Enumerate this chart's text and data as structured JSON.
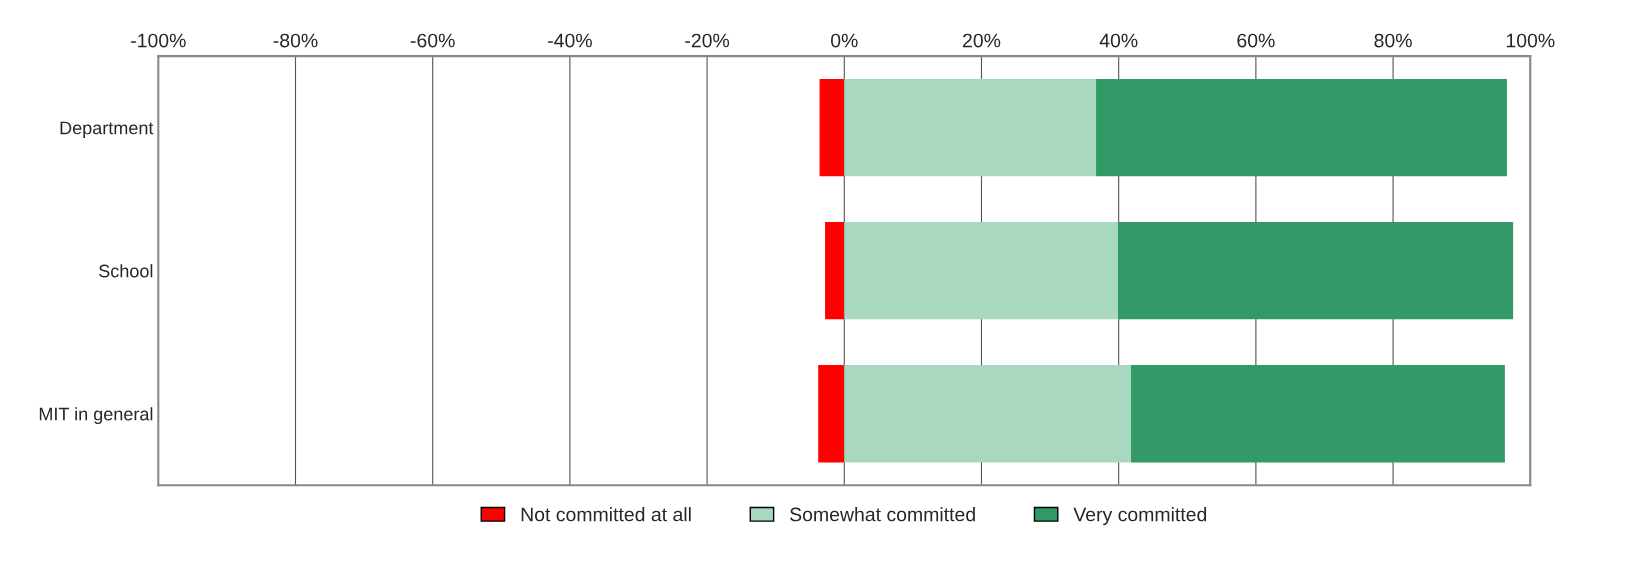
{
  "chart_data": {
    "type": "bar",
    "orientation": "horizontal",
    "stacked": true,
    "categories": [
      "Department",
      "School",
      "MIT in general"
    ],
    "series": [
      {
        "name": "Not committed at all",
        "color": "#ff0000",
        "values": [
          -3.6,
          -2.8,
          -3.8
        ]
      },
      {
        "name": "Somewhat committed",
        "color": "#a9d8c0",
        "values": [
          36.7,
          39.9,
          41.8
        ]
      },
      {
        "name": "Very committed",
        "color": "#339966",
        "values": [
          59.9,
          57.6,
          54.5
        ]
      }
    ],
    "xlim": [
      -100,
      100
    ],
    "xticks": [
      {
        "value": -100,
        "label": "-100%"
      },
      {
        "value": -80,
        "label": "-80%"
      },
      {
        "value": -60,
        "label": "-60%"
      },
      {
        "value": -40,
        "label": "-40%"
      },
      {
        "value": -20,
        "label": "-20%"
      },
      {
        "value": 0,
        "label": "0%"
      },
      {
        "value": 20,
        "label": "20%"
      },
      {
        "value": 40,
        "label": "40%"
      },
      {
        "value": 60,
        "label": "60%"
      },
      {
        "value": 80,
        "label": "80%"
      },
      {
        "value": 100,
        "label": "100%"
      }
    ],
    "grid": "x",
    "legend": "bottom"
  }
}
